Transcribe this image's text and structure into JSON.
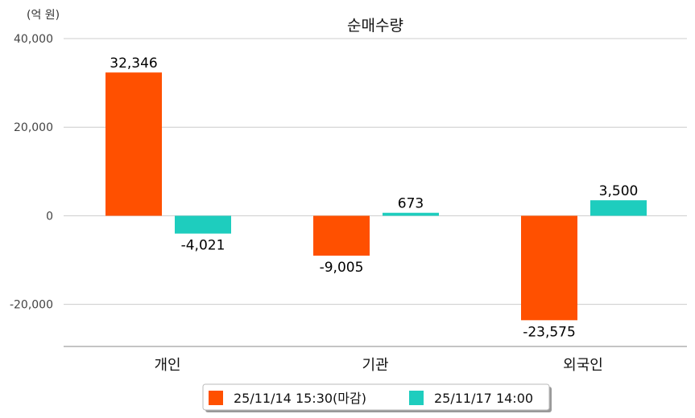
{
  "chart_data": {
    "type": "bar",
    "title": "순매수량",
    "unit_label": "(억 원)",
    "xlabel": "",
    "ylabel": "",
    "ylim": [
      -29500,
      40000
    ],
    "yticks": [
      40000,
      20000,
      0,
      -20000
    ],
    "ytick_labels": [
      "40,000",
      "20,000",
      "0",
      "-20,000"
    ],
    "grid": true,
    "legend_position": "bottom-center",
    "categories": [
      "개인",
      "기관",
      "외국인"
    ],
    "series": [
      {
        "name": "25/11/14 15:30(마감)",
        "color": "#ff5000",
        "values": [
          32346,
          -9005,
          -23575
        ],
        "labels": [
          "32,346",
          "-9,005",
          "-23,575"
        ]
      },
      {
        "name": "25/11/17 14:00",
        "color": "#1ecdbe",
        "values": [
          -4021,
          673,
          3500
        ],
        "labels": [
          "-4,021",
          "673",
          "3,500"
        ]
      }
    ]
  }
}
